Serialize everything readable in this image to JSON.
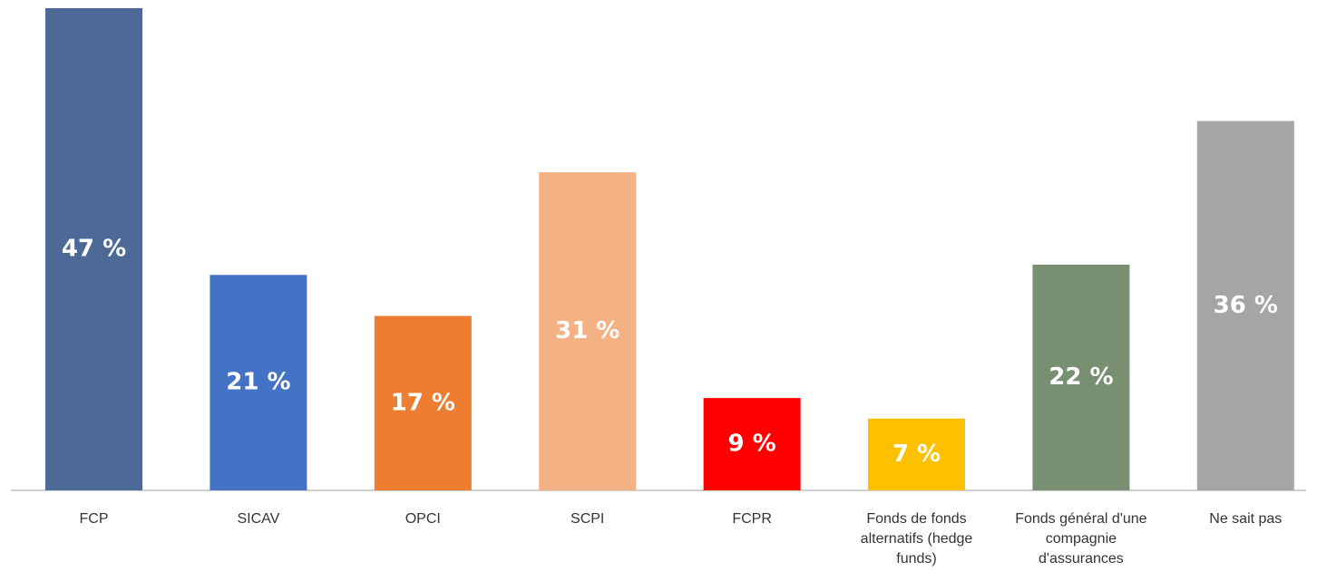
{
  "chart_data": {
    "type": "bar",
    "categories": [
      "FCP",
      "SICAV",
      "OPCI",
      "SCPI",
      "FCPR",
      "Fonds de fonds alternatifs (hedge funds)",
      "Fonds général d'une compagnie d'assurances",
      "Ne sait pas"
    ],
    "values": [
      47,
      21,
      17,
      31,
      9,
      7,
      22,
      36
    ],
    "value_labels": [
      "47 %",
      "21 %",
      "17 %",
      "31 %",
      "9 %",
      "7 %",
      "22 %",
      "36 %"
    ],
    "colors": [
      "#4d6a97",
      "#4472c4",
      "#ed7d31",
      "#f4b183",
      "#ff0000",
      "#ffc000",
      "#798f72",
      "#a5a5a5"
    ],
    "ylim": [
      0,
      47
    ]
  }
}
